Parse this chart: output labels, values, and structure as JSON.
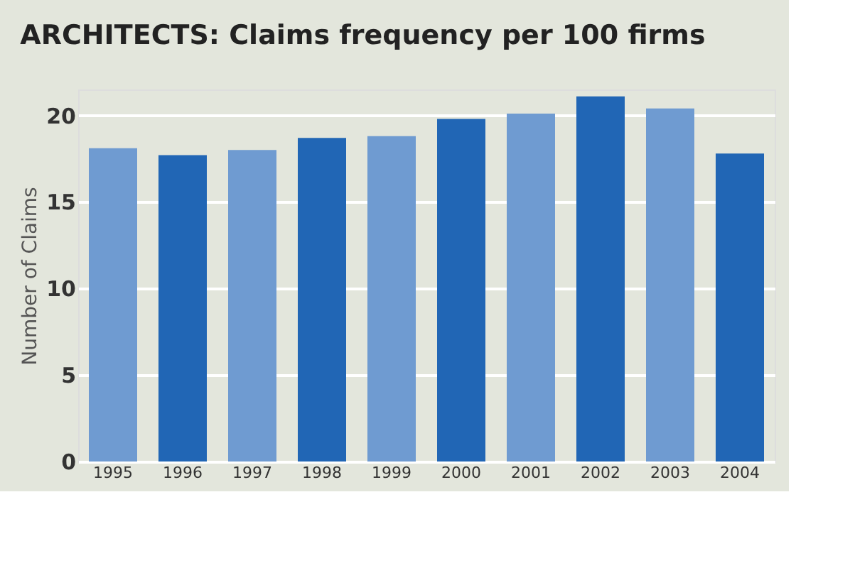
{
  "chart_data": {
    "type": "bar",
    "title": "ARCHITECTS: Claims frequency per 100 firms",
    "ylabel": "Number of Claims",
    "categories": [
      "1995",
      "1996",
      "1997",
      "1998",
      "1999",
      "2000",
      "2001",
      "2002",
      "2003",
      "2004"
    ],
    "values": [
      18.1,
      17.7,
      18.0,
      18.7,
      18.8,
      19.8,
      20.1,
      21.1,
      20.4,
      17.8
    ],
    "colors": [
      "#6f9bd1",
      "#2166b5",
      "#6f9bd1",
      "#2166b5",
      "#6f9bd1",
      "#2166b5",
      "#6f9bd1",
      "#2166b5",
      "#6f9bd1",
      "#2166b5"
    ],
    "ylim": [
      0,
      21.5
    ],
    "yticks": [
      0,
      5,
      10,
      15,
      20
    ],
    "grid": "y"
  }
}
